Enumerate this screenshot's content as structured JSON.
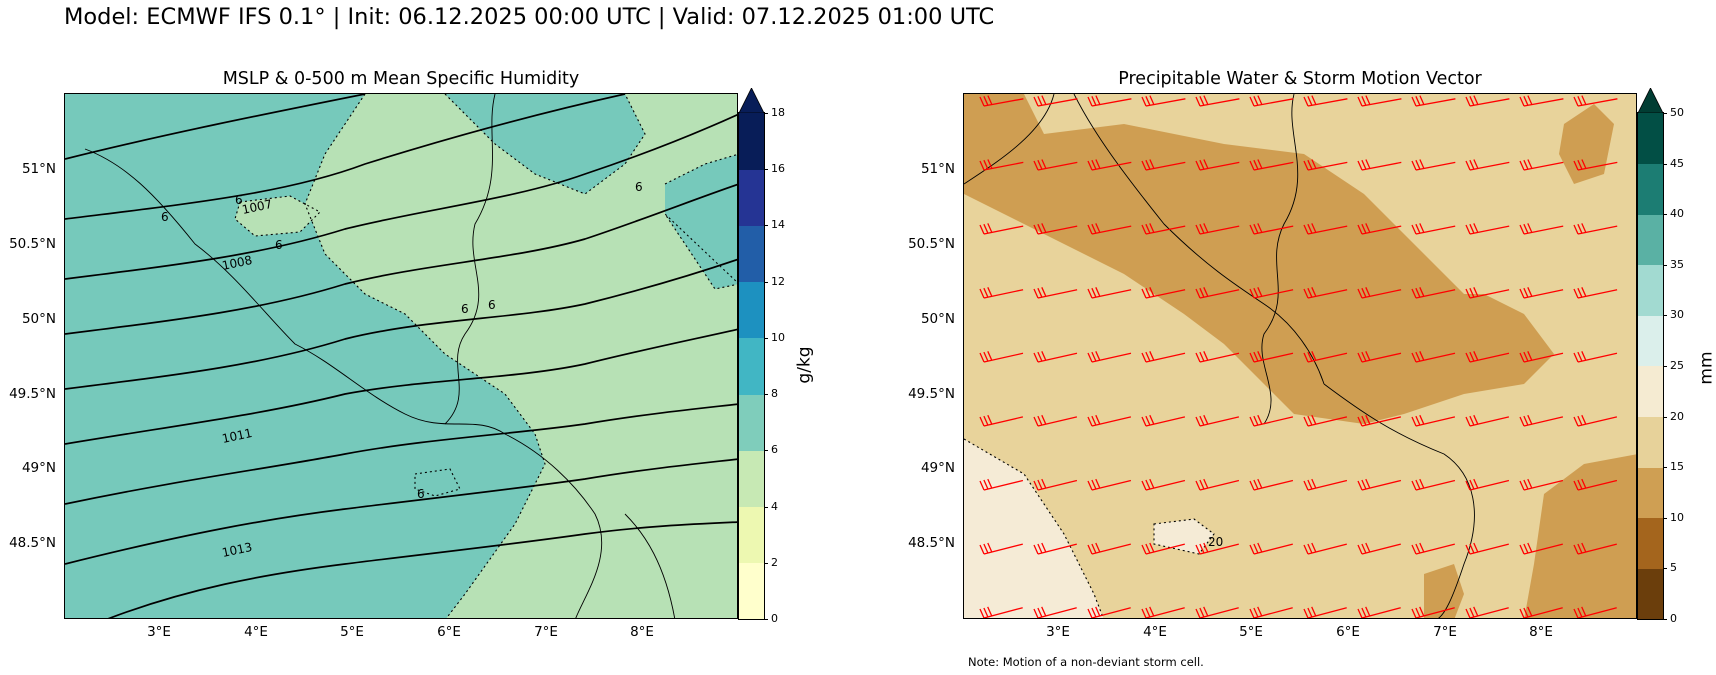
{
  "suptitle": "Model: ECMWF IFS 0.1° | Init: 06.12.2025 00:00 UTC | Valid: 07.12.2025 01:00 UTC",
  "left_panel": {
    "title": "MSLP & 0-500 m Mean Specific Humidity",
    "lat_labels": [
      "51°N",
      "50.5°N",
      "50°N",
      "49.5°N",
      "49°N",
      "48.5°N"
    ],
    "lon_labels": [
      "3°E",
      "4°E",
      "5°E",
      "6°E",
      "7°E",
      "8°E"
    ],
    "colorbar": {
      "unit": "g/kg",
      "ticks": [
        "0",
        "2",
        "4",
        "6",
        "8",
        "10",
        "12",
        "14",
        "16",
        "18"
      ],
      "colors": [
        "#ffffcc",
        "#edf8b1",
        "#c7e9b4",
        "#7fcdbb",
        "#41b6c4",
        "#1d91c0",
        "#225ea8",
        "#253494",
        "#081d58"
      ],
      "extend_color": "#081d58"
    },
    "field_colors": {
      "moist": "#76c9bb",
      "dry": "#b7e1b5"
    },
    "isobar_labels": [
      "1007",
      "1008",
      "1011",
      "1013"
    ],
    "humidity_labels": [
      "6",
      "6",
      "6",
      "6",
      "6",
      "6",
      "6"
    ]
  },
  "right_panel": {
    "title": "Precipitable Water & Storm Motion Vector",
    "lat_labels": [
      "51°N",
      "50.5°N",
      "50°N",
      "49.5°N",
      "49°N",
      "48.5°N"
    ],
    "lon_labels": [
      "3°E",
      "4°E",
      "5°E",
      "6°E",
      "7°E",
      "8°E"
    ],
    "colorbar": {
      "unit": "mm",
      "ticks": [
        "0",
        "5",
        "10",
        "15",
        "20",
        "25",
        "30",
        "35",
        "40",
        "45",
        "50"
      ],
      "colors": [
        "#6b3e0c",
        "#a4651d",
        "#cf9f53",
        "#e7d29a",
        "#f5ebd2",
        "#dbefeb",
        "#a2dad1",
        "#5ab1a4",
        "#1c7d73",
        "#024f45"
      ],
      "extend_color": "#013d33"
    },
    "field_colors": {
      "base": "#e8d39b",
      "wet": "#cf9e52",
      "dry": "#f5ebd6"
    },
    "barb_color": "#ff0000",
    "contour_label": "20",
    "note": "Note: Motion of a non-deviant storm cell."
  }
}
